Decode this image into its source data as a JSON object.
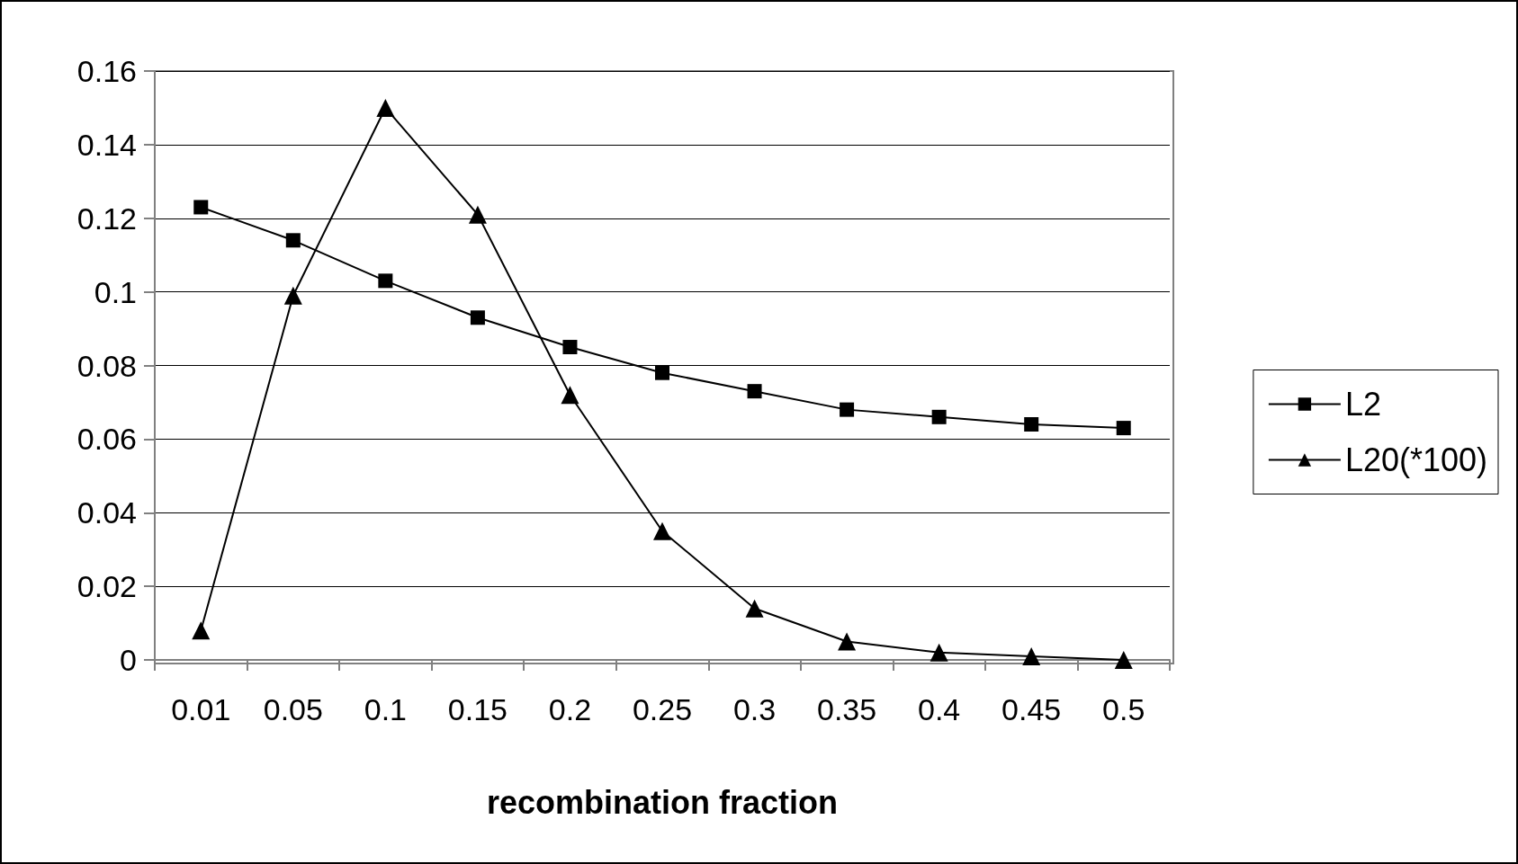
{
  "chart_data": {
    "type": "line",
    "xlabel": "recombination fraction",
    "categories": [
      "0.01",
      "0.05",
      "0.1",
      "0.15",
      "0.2",
      "0.25",
      "0.3",
      "0.35",
      "0.4",
      "0.45",
      "0.5"
    ],
    "series": [
      {
        "name": "L2",
        "color": "#000000",
        "marker": "square",
        "values": [
          0.123,
          0.114,
          0.103,
          0.093,
          0.085,
          0.078,
          0.073,
          0.068,
          0.066,
          0.064,
          0.063
        ]
      },
      {
        "name": "L20(*100)",
        "color": "#000000",
        "marker": "triangle",
        "values": [
          0.008,
          0.099,
          0.15,
          0.121,
          0.072,
          0.035,
          0.014,
          0.005,
          0.002,
          0.001,
          0
        ]
      }
    ],
    "ylim": [
      0,
      0.16
    ],
    "yticks": [
      0,
      0.02,
      0.04,
      0.06,
      0.08,
      0.1,
      0.12,
      0.14,
      0.16
    ],
    "grid": "y",
    "legend": "right",
    "line_style": "solid"
  }
}
